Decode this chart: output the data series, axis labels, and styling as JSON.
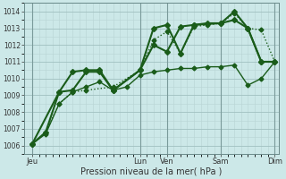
{
  "xlabel": "Pression niveau de la mer( hPa )",
  "ylim": [
    1005.8,
    1014.3
  ],
  "yticks": [
    1006,
    1007,
    1008,
    1009,
    1010,
    1011,
    1012,
    1013,
    1014
  ],
  "background_color": "#cce8e8",
  "grid_color_minor": "#b8d4d4",
  "grid_color_major": "#a0c0c0",
  "line_color": "#1a5c1a",
  "xtick_labels": [
    "Jeu",
    "",
    "",
    "",
    "Lun",
    "Ven",
    "",
    "Sam",
    "",
    "Dim"
  ],
  "xtick_positions": [
    0,
    4,
    5,
    7,
    9
  ],
  "xtick_label_vals": [
    "Jeu",
    "Lun",
    "Ven",
    "Sam",
    "Dim"
  ],
  "x_total": 9,
  "vline_positions": [
    0,
    4,
    5,
    7,
    9
  ],
  "series1": {
    "x": [
      0,
      0.5,
      1.0,
      1.5,
      2.0,
      3.0,
      4.0,
      4.5,
      5.0,
      5.5,
      6.0,
      6.5,
      7.0,
      7.5,
      8.0,
      8.5,
      9.0
    ],
    "y": [
      1006.1,
      1006.8,
      1008.5,
      1009.2,
      1009.3,
      1009.5,
      1010.5,
      1012.3,
      1012.8,
      1011.5,
      1013.1,
      1013.2,
      1013.3,
      1013.9,
      1013.0,
      1012.9,
      1011.0
    ],
    "style": ":",
    "marker": "D",
    "markersize": 2.5,
    "linewidth": 1.0
  },
  "series2": {
    "x": [
      0,
      1.0,
      1.5,
      2.0,
      2.5,
      3.0,
      4.0,
      4.5,
      5.0,
      5.5,
      6.0,
      7.0,
      7.5,
      8.0,
      8.5,
      9.0
    ],
    "y": [
      1006.1,
      1009.2,
      1010.4,
      1010.5,
      1010.5,
      1009.3,
      1010.5,
      1013.0,
      1013.2,
      1011.5,
      1013.2,
      1013.3,
      1014.0,
      1013.0,
      1011.0,
      1011.0
    ],
    "style": "-",
    "marker": "D",
    "markersize": 3,
    "linewidth": 1.5
  },
  "series3": {
    "x": [
      0,
      0.5,
      1.0,
      1.5,
      2.0,
      2.5,
      3.0,
      4.0,
      4.5,
      5.0,
      5.5,
      6.0,
      6.5,
      7.0,
      7.5,
      8.0,
      8.5,
      9.0
    ],
    "y": [
      1006.1,
      1006.8,
      1009.2,
      1009.3,
      1010.4,
      1010.4,
      1009.3,
      1010.5,
      1012.0,
      1011.6,
      1013.1,
      1013.2,
      1013.3,
      1013.3,
      1013.5,
      1013.0,
      1011.0,
      1011.0
    ],
    "style": "-",
    "marker": "D",
    "markersize": 3,
    "linewidth": 1.5
  },
  "series4": {
    "x": [
      0,
      0.5,
      1.0,
      1.5,
      2.0,
      2.5,
      3.0,
      3.5,
      4.0,
      4.5,
      5.0,
      5.5,
      6.0,
      6.5,
      7.0,
      7.5,
      8.0,
      8.5,
      9.0
    ],
    "y": [
      1006.1,
      1006.7,
      1008.5,
      1009.2,
      1009.5,
      1009.8,
      1009.3,
      1009.5,
      1010.2,
      1010.4,
      1010.5,
      1010.6,
      1010.6,
      1010.7,
      1010.7,
      1010.8,
      1009.6,
      1010.0,
      1011.0
    ],
    "style": "-",
    "marker": "D",
    "markersize": 2.5,
    "linewidth": 1.0
  }
}
